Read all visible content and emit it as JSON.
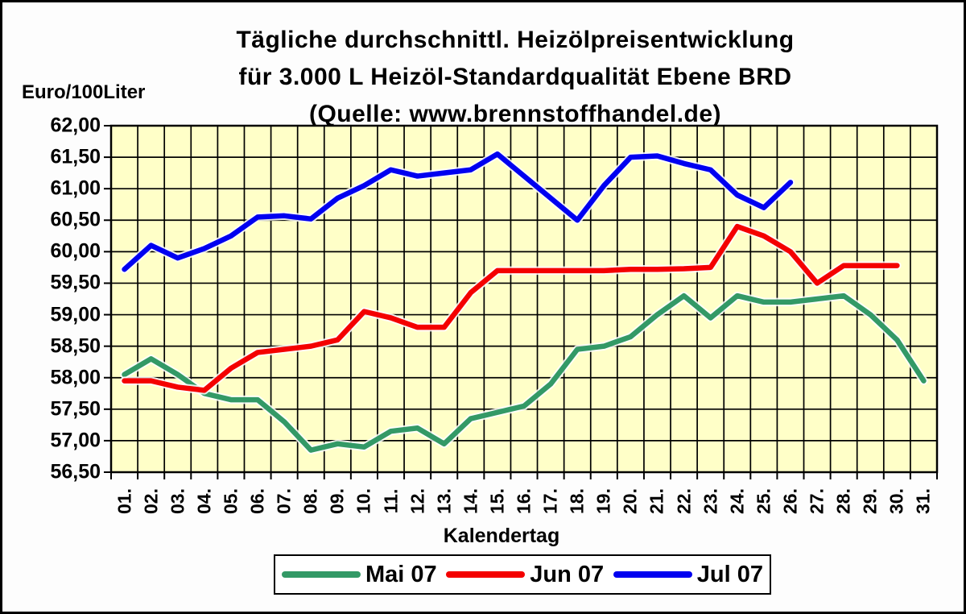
{
  "page": {
    "title_lines": [
      "Tägliche durchschnittl. Heizölpreisentwicklung",
      "für 3.000 L Heizöl-Standardqualität Ebene BRD",
      "(Quelle: www.brennstoffhandel.de)"
    ],
    "y_axis_title": "Euro/100Liter",
    "x_axis_title": "Kalendertag"
  },
  "chart_data": {
    "type": "line",
    "title": "Tägliche durchschnittl. Heizölpreisentwicklung für 3.000 L Heizöl-Standardqualität Ebene BRD (Quelle: www.brennstoffhandel.de)",
    "xlabel": "Kalendertag",
    "ylabel": "Euro/100Liter",
    "x_labels": [
      "01.",
      "02.",
      "03.",
      "04.",
      "05.",
      "06.",
      "07.",
      "08.",
      "09.",
      "10.",
      "11.",
      "12.",
      "13.",
      "14.",
      "15.",
      "16.",
      "17.",
      "18.",
      "19.",
      "20.",
      "21.",
      "22.",
      "23.",
      "24.",
      "25.",
      "26.",
      "27.",
      "28.",
      "29.",
      "30.",
      "31."
    ],
    "y_ticks": [
      "62,00",
      "61,50",
      "61,00",
      "60,50",
      "60,00",
      "59,50",
      "59,00",
      "58,50",
      "58,00",
      "57,50",
      "57,00",
      "56,50"
    ],
    "ylim": [
      56.5,
      62.0
    ],
    "y_step": 0.5,
    "grid": true,
    "plot_bg": "#FFFFC8",
    "grid_color": "#000000",
    "legend_position": "bottom",
    "series": [
      {
        "name": "Mai 07",
        "color": "#339966",
        "values": [
          58.05,
          58.3,
          58.05,
          57.75,
          57.65,
          57.65,
          57.3,
          56.85,
          56.95,
          56.9,
          57.15,
          57.2,
          56.95,
          57.35,
          57.45,
          57.55,
          57.9,
          58.45,
          58.5,
          58.65,
          59.0,
          59.3,
          58.95,
          59.3,
          59.2,
          59.2,
          59.25,
          59.3,
          59.0,
          58.6,
          57.95
        ]
      },
      {
        "name": "Jun 07",
        "color": "#F40000",
        "values": [
          57.95,
          57.95,
          57.85,
          57.8,
          58.15,
          58.4,
          58.45,
          58.5,
          58.6,
          59.05,
          58.95,
          58.8,
          58.8,
          59.35,
          59.7,
          59.7,
          59.7,
          59.7,
          59.7,
          59.72,
          59.72,
          59.73,
          59.75,
          60.4,
          60.25,
          60.0,
          59.5,
          59.78,
          59.78,
          59.78
        ]
      },
      {
        "name": "Jul 07",
        "color": "#0000F0",
        "values": [
          59.72,
          60.1,
          59.9,
          60.05,
          60.25,
          60.55,
          60.57,
          60.52,
          60.85,
          61.05,
          61.3,
          61.2,
          61.25,
          61.3,
          61.55,
          61.2,
          60.85,
          60.5,
          61.05,
          61.5,
          61.52,
          61.4,
          61.3,
          60.9,
          60.7,
          61.1
        ]
      }
    ]
  }
}
